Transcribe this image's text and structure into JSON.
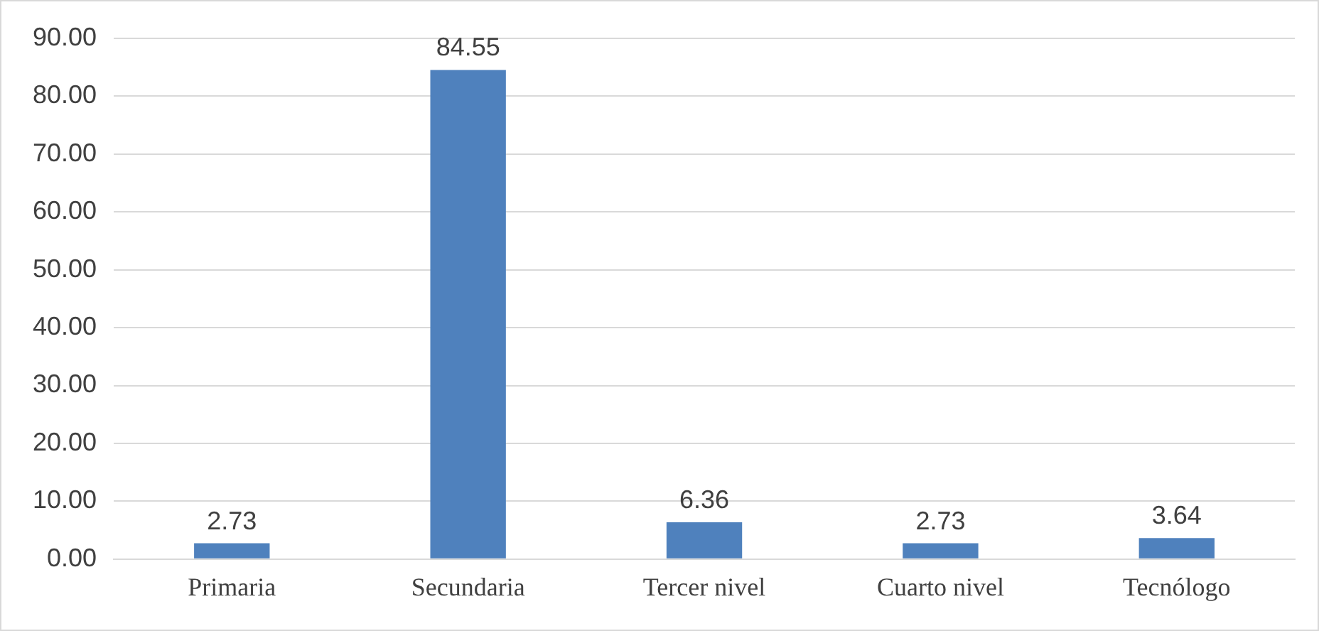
{
  "chart_data": {
    "type": "bar",
    "categories": [
      "Primaria",
      "Secundaria",
      "Tercer nivel",
      "Cuarto nivel",
      "Tecnólogo"
    ],
    "values": [
      2.73,
      84.55,
      6.36,
      2.73,
      3.64
    ],
    "color": "#4f81bd",
    "ylim": [
      0,
      90
    ],
    "yticks": [
      {
        "value": 0,
        "label": "0.00"
      },
      {
        "value": 10,
        "label": "10.00"
      },
      {
        "value": 20,
        "label": "20.00"
      },
      {
        "value": 30,
        "label": "30.00"
      },
      {
        "value": 40,
        "label": "40.00"
      },
      {
        "value": 50,
        "label": "50.00"
      },
      {
        "value": 60,
        "label": "60.00"
      },
      {
        "value": 70,
        "label": "70.00"
      },
      {
        "value": 80,
        "label": "80.00"
      },
      {
        "value": 90,
        "label": "90.00"
      }
    ],
    "grid": "y",
    "data_labels": true,
    "legend": false
  }
}
